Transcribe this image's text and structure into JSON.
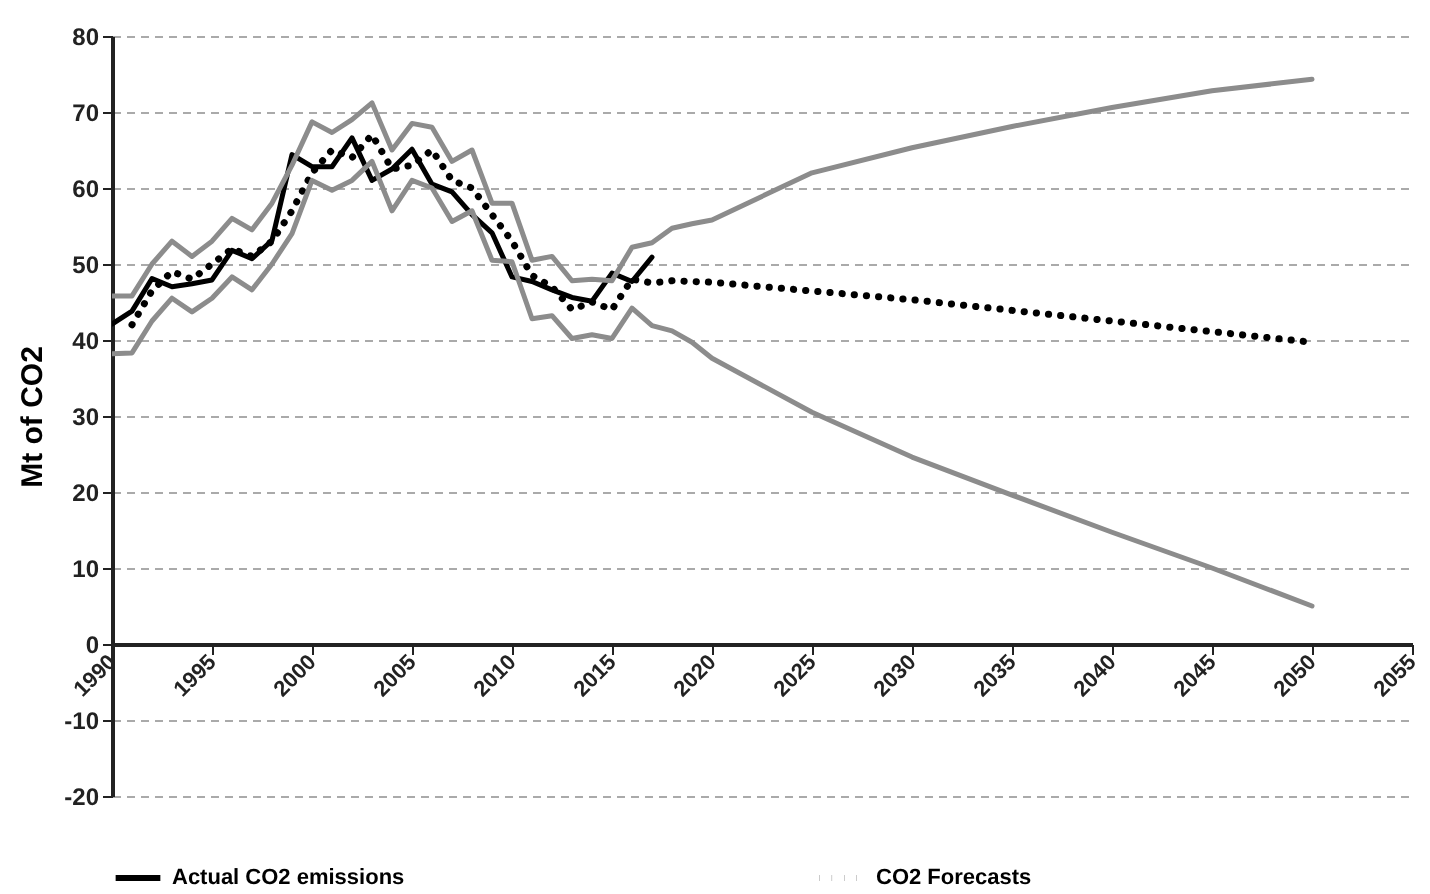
{
  "chart_data": {
    "type": "line",
    "ylabel": "Mt  of CO2",
    "xlim": [
      1990,
      2055
    ],
    "xticks": [
      1990,
      1995,
      2000,
      2005,
      2010,
      2015,
      2020,
      2025,
      2030,
      2035,
      2040,
      2045,
      2050,
      2055
    ],
    "ylim": [
      -20,
      80
    ],
    "yticks": [
      -20,
      -10,
      0,
      10,
      20,
      30,
      40,
      50,
      60,
      70,
      80
    ],
    "grid": "y",
    "legend": "bottom",
    "marker": "none",
    "series": [
      {
        "name": "Actual CO2 emissions",
        "color": "#000000",
        "line_style": "solid",
        "x": [
          1990,
          1991,
          1992,
          1993,
          1994,
          1995,
          1996,
          1997,
          1998,
          1999,
          2000,
          2001,
          2002,
          2003,
          2004,
          2005,
          2006,
          2007,
          2008,
          2009,
          2010,
          2011,
          2012,
          2013,
          2014,
          2015,
          2016,
          2017
        ],
        "values": [
          42.1,
          43.8,
          48.1,
          47,
          47.4,
          47.9,
          51.8,
          50.7,
          53.1,
          64.4,
          62.8,
          62.8,
          66.6,
          61,
          62.5,
          65.1,
          60.5,
          59.5,
          56.5,
          54.1,
          48.3,
          47.7,
          46.6,
          45.6,
          45.1,
          48.8,
          47.7,
          50.9
        ]
      },
      {
        "name": "CO2 Forecasts",
        "color": "#000000",
        "line_style": "dotted",
        "x": [
          1991,
          1992,
          1993,
          1994,
          1995,
          1996,
          1997,
          1998,
          1999,
          2000,
          2001,
          2002,
          2003,
          2004,
          2005,
          2006,
          2007,
          2008,
          2009,
          2010,
          2011,
          2012,
          2013,
          2014,
          2015,
          2016,
          2017,
          2018,
          2020,
          2030,
          2040,
          2050
        ],
        "values": [
          42,
          46.5,
          49,
          48,
          50,
          52,
          51,
          53,
          57,
          62,
          65,
          64,
          67,
          62.5,
          63,
          65,
          61,
          60,
          56.5,
          53,
          48.5,
          47,
          44,
          45,
          44,
          48,
          47.5,
          47.8,
          47.6,
          45.3,
          42.5,
          39.7
        ]
      },
      {
        "color": "#8c8c8c",
        "line_style": "solid",
        "x": [
          1990,
          1991,
          1992,
          1993,
          1994,
          1995,
          1996,
          1997,
          1998,
          1999,
          2000,
          2001,
          2002,
          2003,
          2004,
          2005,
          2006,
          2007,
          2008,
          2009,
          2010,
          2011,
          2012,
          2013,
          2014,
          2015,
          2016,
          2017,
          2018,
          2019,
          2020,
          2025,
          2030,
          2035,
          2040,
          2045,
          2050
        ],
        "values": [
          45.8,
          45.8,
          50,
          53,
          51,
          53,
          56,
          54.5,
          58,
          63,
          68.7,
          67.3,
          69,
          71.2,
          65,
          68.5,
          68,
          63.5,
          65,
          58,
          58,
          50.5,
          51,
          47.8,
          48,
          47.8,
          52.2,
          52.8,
          54.7,
          55.3,
          55.8,
          62,
          65.3,
          68.1,
          70.6,
          72.8,
          74.3
        ]
      },
      {
        "color": "#8c8c8c",
        "line_style": "solid",
        "x": [
          1990,
          1991,
          1992,
          1993,
          1994,
          1995,
          1996,
          1997,
          1998,
          1999,
          2000,
          2001,
          2002,
          2003,
          2004,
          2005,
          2006,
          2007,
          2008,
          2009,
          2010,
          2011,
          2012,
          2013,
          2014,
          2015,
          2016,
          2017,
          2018,
          2019,
          2020,
          2025,
          2030,
          2035,
          2040,
          2045,
          2050
        ],
        "values": [
          38.2,
          38.3,
          42.5,
          45.5,
          43.7,
          45.5,
          48.3,
          46.6,
          50,
          54,
          61,
          59.7,
          61,
          63.5,
          57,
          61,
          60,
          55.6,
          57,
          50.5,
          50.3,
          42.8,
          43.2,
          40.2,
          40.7,
          40.2,
          44.2,
          41.9,
          41.2,
          39.7,
          37.6,
          30.5,
          24.6,
          19.6,
          14.7,
          10,
          5
        ]
      }
    ]
  }
}
